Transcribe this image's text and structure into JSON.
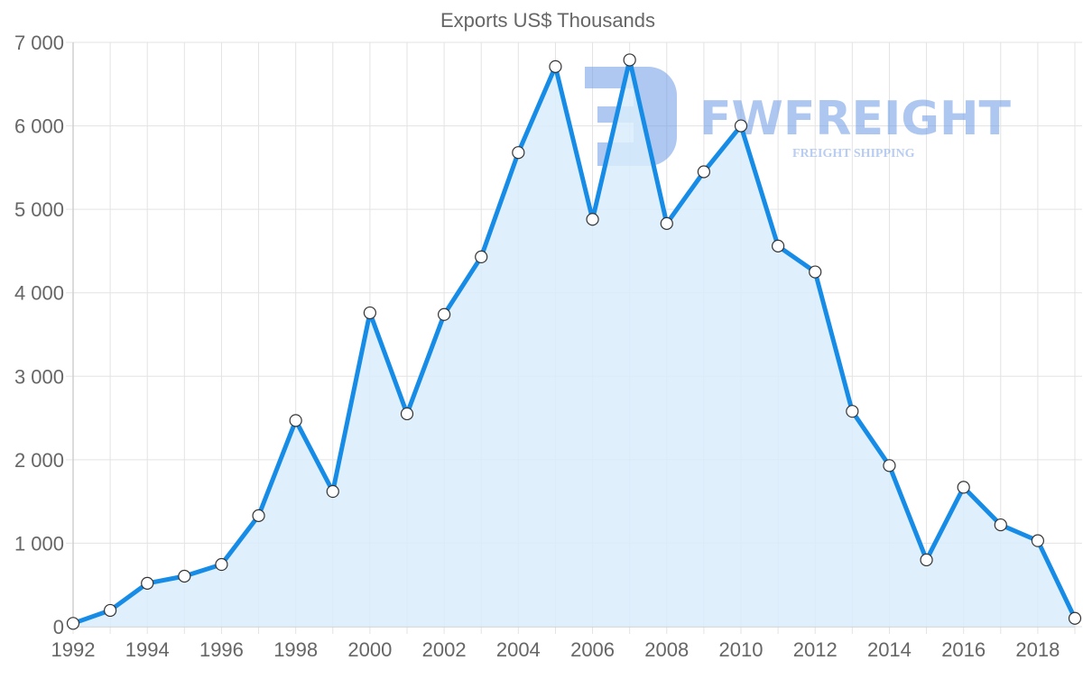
{
  "chart_data": {
    "type": "area",
    "title": "Exports US$ Thousands",
    "xlabel": "",
    "ylabel": "",
    "x": [
      1992,
      1993,
      1994,
      1995,
      1996,
      1997,
      1998,
      1999,
      2000,
      2001,
      2002,
      2003,
      2004,
      2005,
      2006,
      2007,
      2008,
      2009,
      2010,
      2011,
      2012,
      2013,
      2014,
      2015,
      2016,
      2017,
      2018,
      2019
    ],
    "series": [
      {
        "name": "Exports",
        "values": [
          40,
          195,
          520,
          605,
          745,
          1330,
          2470,
          1620,
          3760,
          2550,
          3740,
          4430,
          5680,
          6710,
          4880,
          6790,
          4830,
          5450,
          6000,
          4560,
          4250,
          2580,
          1930,
          800,
          1670,
          1220,
          1030,
          100
        ]
      }
    ],
    "ylim": [
      0,
      7000
    ],
    "yticks": [
      0,
      1000,
      2000,
      3000,
      4000,
      5000,
      6000,
      7000
    ],
    "ytick_labels": [
      "0",
      "1 000",
      "2 000",
      "3 000",
      "4 000",
      "5 000",
      "6 000",
      "7 000"
    ],
    "xticks": [
      1992,
      1994,
      1996,
      1998,
      2000,
      2002,
      2004,
      2006,
      2008,
      2010,
      2012,
      2014,
      2016,
      2018
    ],
    "grid": true,
    "legend": null,
    "colors": {
      "line": "#168ce6",
      "fill": "#d9ecfc",
      "marker_fill": "#ffffff",
      "marker_stroke": "#333333"
    }
  },
  "watermark": {
    "brand": "FWFREIGHT",
    "tagline": "FREIGHT SHIPPING"
  }
}
